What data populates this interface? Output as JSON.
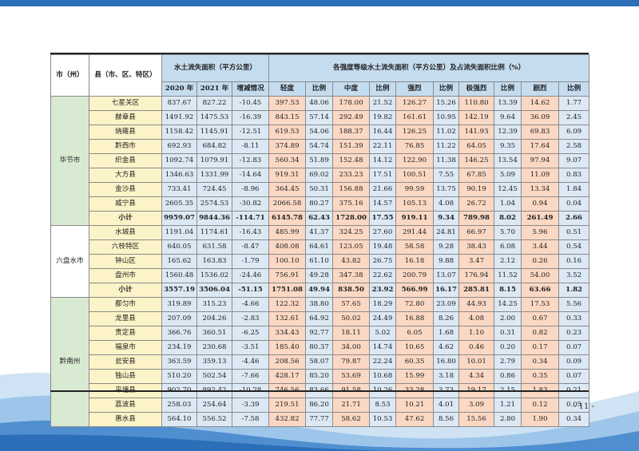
{
  "header": {
    "col_city": "市（州）",
    "col_county": "县（市、区、特区）",
    "col_area_group": "水土流失面积（平方公里）",
    "col_y2020": "2020 年",
    "col_y2021": "2021 年",
    "col_change": "增减情况",
    "col_intensity_group": "各强度等级水土流失面积（平方公里）及占流失面积比例（%）",
    "col_light": "轻度",
    "col_ratio": "比例",
    "col_moderate": "中度",
    "col_strong": "强烈",
    "col_very_strong": "极强烈",
    "col_severe": "剧烈"
  },
  "groups": [
    {
      "city": "毕节市",
      "rows": [
        [
          "七星关区",
          "837.67",
          "827.22",
          "-10.45",
          "397.53",
          "48.06",
          "178.00",
          "21.52",
          "126.27",
          "15.26",
          "110.80",
          "13.39",
          "14.62",
          "1.77"
        ],
        [
          "赫章县",
          "1491.92",
          "1475.53",
          "-16.39",
          "843.15",
          "57.14",
          "292.49",
          "19.82",
          "161.61",
          "10.95",
          "142.19",
          "9.64",
          "36.09",
          "2.45"
        ],
        [
          "纳雍县",
          "1158.42",
          "1145.91",
          "-12.51",
          "619.53",
          "54.06",
          "188.37",
          "16.44",
          "126.25",
          "11.02",
          "141.93",
          "12.39",
          "69.83",
          "6.09"
        ],
        [
          "黔西市",
          "692.93",
          "684.82",
          "-8.11",
          "374.89",
          "54.74",
          "151.39",
          "22.11",
          "76.85",
          "11.22",
          "64.05",
          "9.35",
          "17.64",
          "2.58"
        ],
        [
          "织金县",
          "1092.74",
          "1079.91",
          "-12.83",
          "560.34",
          "51.89",
          "152.48",
          "14.12",
          "122.90",
          "11.38",
          "146.25",
          "13.54",
          "97.94",
          "9.07"
        ],
        [
          "大方县",
          "1346.63",
          "1331.99",
          "-14.64",
          "919.31",
          "69.02",
          "233.23",
          "17.51",
          "100.51",
          "7.55",
          "67.85",
          "5.09",
          "11.09",
          "0.83"
        ],
        [
          "金沙县",
          "733.41",
          "724.45",
          "-8.96",
          "364.45",
          "50.31",
          "156.88",
          "21.66",
          "99.59",
          "13.75",
          "90.19",
          "12.45",
          "13.34",
          "1.84"
        ],
        [
          "威宁县",
          "2605.35",
          "2574.53",
          "-30.82",
          "2066.58",
          "80.27",
          "375.16",
          "14.57",
          "105.13",
          "4.08",
          "26.72",
          "1.04",
          "0.94",
          "0.04"
        ]
      ],
      "subtotal": [
        "小计",
        "9959.07",
        "9844.36",
        "-114.71",
        "6145.78",
        "62.43",
        "1728.00",
        "17.55",
        "919.11",
        "9.34",
        "789.98",
        "8.02",
        "261.49",
        "2.66"
      ]
    },
    {
      "city": "六盘水市",
      "rows": [
        [
          "水城县",
          "1191.04",
          "1174.61",
          "-16.43",
          "485.99",
          "41.37",
          "324.25",
          "27.60",
          "291.44",
          "24.81",
          "66.97",
          "5.70",
          "5.96",
          "0.51"
        ],
        [
          "六枝特区",
          "640.05",
          "631.58",
          "-8.47",
          "408.08",
          "64.61",
          "123.05",
          "19.48",
          "58.58",
          "9.28",
          "38.43",
          "6.08",
          "3.44",
          "0.54"
        ],
        [
          "钟山区",
          "165.62",
          "163.83",
          "-1.79",
          "100.10",
          "61.10",
          "43.82",
          "26.75",
          "16.18",
          "9.88",
          "3.47",
          "2.12",
          "0.26",
          "0.16"
        ],
        [
          "盘州市",
          "1560.48",
          "1536.02",
          "-24.46",
          "756.91",
          "49.28",
          "347.38",
          "22.62",
          "200.79",
          "13.07",
          "176.94",
          "11.52",
          "54.00",
          "3.52"
        ]
      ],
      "subtotal": [
        "小计",
        "3557.19",
        "3506.04",
        "-51.15",
        "1751.08",
        "49.94",
        "838.50",
        "23.92",
        "566.99",
        "16.17",
        "285.81",
        "8.15",
        "63.66",
        "1.82"
      ]
    },
    {
      "city": "黔南州",
      "rows": [
        [
          "都匀市",
          "319.89",
          "315.23",
          "-4.66",
          "122.32",
          "38.80",
          "57.65",
          "18.29",
          "72.80",
          "23.09",
          "44.93",
          "14.25",
          "17.53",
          "5.56"
        ],
        [
          "龙里县",
          "207.09",
          "204.26",
          "-2.83",
          "132.61",
          "64.92",
          "50.02",
          "24.49",
          "16.88",
          "8.26",
          "4.08",
          "2.00",
          "0.67",
          "0.33"
        ],
        [
          "贵定县",
          "366.76",
          "360.51",
          "-6.25",
          "334.43",
          "92.77",
          "18.11",
          "5.02",
          "6.05",
          "1.68",
          "1.10",
          "0.31",
          "0.82",
          "0.23"
        ],
        [
          "福泉市",
          "234.19",
          "230.68",
          "-3.51",
          "185.40",
          "80.37",
          "34.00",
          "14.74",
          "10.65",
          "4.62",
          "0.46",
          "0.20",
          "0.17",
          "0.07"
        ],
        [
          "瓮安县",
          "363.59",
          "359.13",
          "-4.46",
          "208.56",
          "58.07",
          "79.87",
          "22.24",
          "60.35",
          "16.80",
          "10.01",
          "2.79",
          "0.34",
          "0.09"
        ],
        [
          "独山县",
          "510.20",
          "502.54",
          "-7.66",
          "428.17",
          "85.20",
          "53.69",
          "10.68",
          "15.99",
          "3.18",
          "4.34",
          "0.86",
          "0.35",
          "0.07"
        ],
        [
          "平塘县",
          "902.70",
          "892.42",
          "-10.28",
          "746.56",
          "83.66",
          "91.58",
          "10.26",
          "33.28",
          "3.73",
          "19.17",
          "2.15",
          "1.83",
          "0.21"
        ],
        [
          "荔波县",
          "258.03",
          "254.64",
          "-3.39",
          "219.51",
          "86.20",
          "21.71",
          "8.53",
          "10.21",
          "4.01",
          "3.09",
          "1.21",
          "0.12",
          "0.05"
        ],
        [
          "惠水县",
          "564.10",
          "556.52",
          "-7.58",
          "432.82",
          "77.77",
          "58.62",
          "10.53",
          "47.62",
          "8.56",
          "15.56",
          "2.80",
          "1.90",
          "0.34"
        ]
      ]
    }
  ],
  "footer": {
    "page_number": "- 11 -"
  }
}
